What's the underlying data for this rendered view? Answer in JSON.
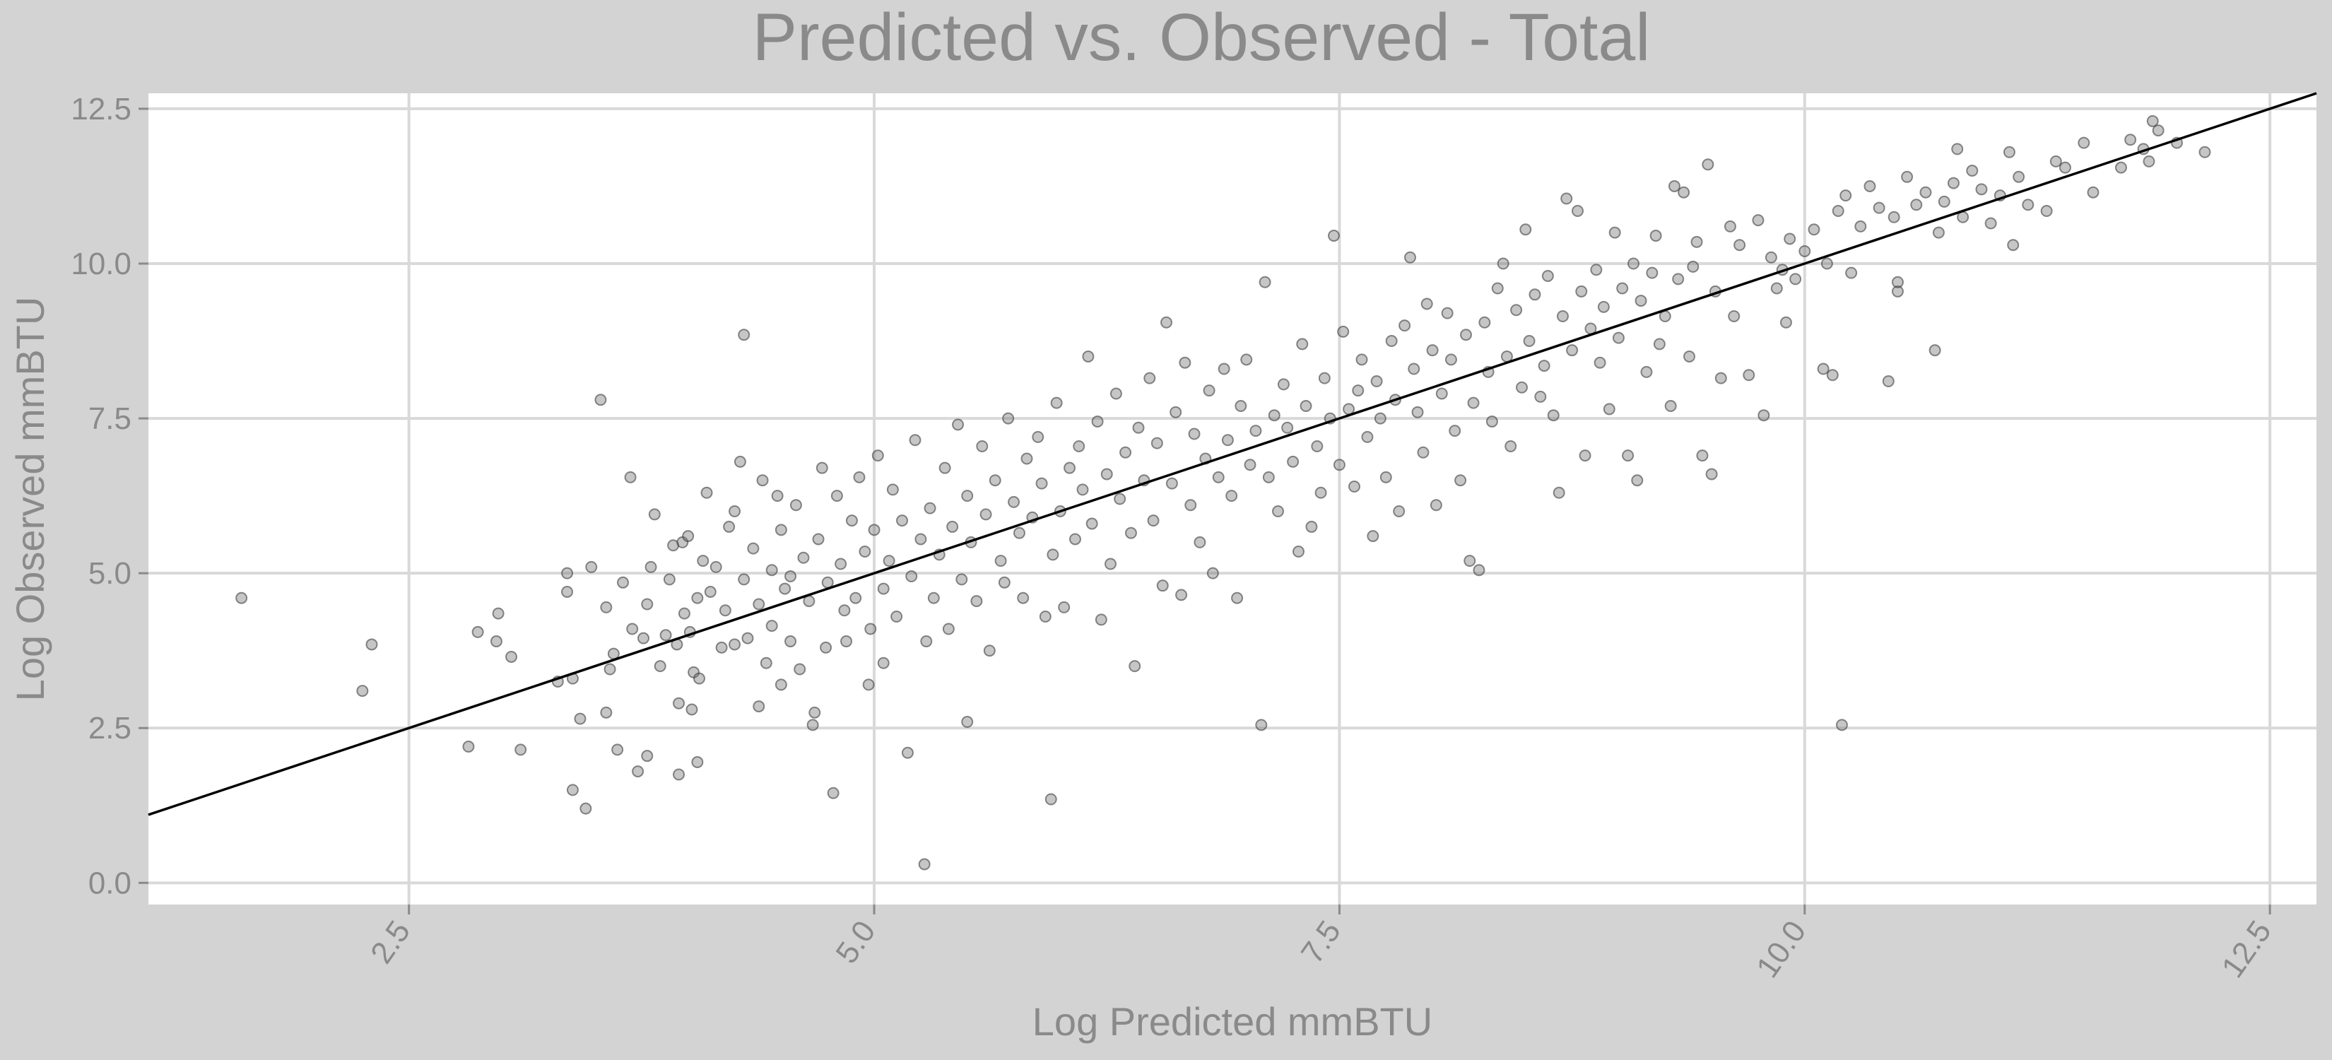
{
  "chart_data": {
    "type": "scatter",
    "title": "Predicted vs. Observed - Total",
    "xlabel": "Log Predicted mmBTU",
    "ylabel": "Log Observed mmBTU",
    "xlim": [
      1.1,
      12.75
    ],
    "ylim": [
      -0.35,
      12.75
    ],
    "xticks": [
      2.5,
      5.0,
      7.5,
      10.0,
      12.5
    ],
    "yticks": [
      0.0,
      2.5,
      5.0,
      7.5,
      10.0,
      12.5
    ],
    "xtick_labels": [
      "2.5",
      "5.0",
      "7.5",
      "10.0",
      "12.5"
    ],
    "ytick_labels": [
      "0.0",
      "2.5",
      "5.0",
      "7.5",
      "10.0",
      "12.5"
    ],
    "grid": true,
    "reference_line": {
      "type": "identity",
      "slope": 1,
      "intercept": 0
    },
    "points": [
      [
        1.6,
        4.6
      ],
      [
        2.25,
        3.1
      ],
      [
        2.3,
        3.85
      ],
      [
        2.82,
        2.2
      ],
      [
        2.87,
        4.05
      ],
      [
        2.98,
        4.35
      ],
      [
        2.97,
        3.9
      ],
      [
        3.05,
        3.65
      ],
      [
        3.1,
        2.15
      ],
      [
        3.3,
        3.25
      ],
      [
        3.35,
        4.7
      ],
      [
        3.35,
        5.0
      ],
      [
        3.38,
        3.3
      ],
      [
        3.38,
        1.5
      ],
      [
        3.42,
        2.65
      ],
      [
        3.45,
        1.2
      ],
      [
        3.48,
        5.1
      ],
      [
        3.53,
        7.8
      ],
      [
        3.56,
        4.45
      ],
      [
        3.56,
        2.75
      ],
      [
        3.58,
        3.45
      ],
      [
        3.6,
        3.7
      ],
      [
        3.62,
        2.15
      ],
      [
        3.65,
        4.85
      ],
      [
        3.69,
        6.55
      ],
      [
        3.7,
        4.1
      ],
      [
        3.73,
        1.8
      ],
      [
        3.76,
        3.95
      ],
      [
        3.78,
        2.05
      ],
      [
        3.78,
        4.5
      ],
      [
        3.8,
        5.1
      ],
      [
        3.82,
        5.95
      ],
      [
        3.85,
        3.5
      ],
      [
        3.88,
        4.0
      ],
      [
        3.9,
        4.9
      ],
      [
        3.92,
        5.45
      ],
      [
        3.94,
        3.85
      ],
      [
        3.95,
        2.9
      ],
      [
        3.95,
        1.75
      ],
      [
        3.97,
        5.5
      ],
      [
        3.98,
        4.35
      ],
      [
        4.0,
        5.6
      ],
      [
        4.01,
        4.05
      ],
      [
        4.02,
        2.8
      ],
      [
        4.03,
        3.4
      ],
      [
        4.05,
        1.95
      ],
      [
        4.05,
        4.6
      ],
      [
        4.06,
        3.3
      ],
      [
        4.08,
        5.2
      ],
      [
        4.1,
        6.3
      ],
      [
        4.12,
        4.7
      ],
      [
        4.15,
        5.1
      ],
      [
        4.18,
        3.8
      ],
      [
        4.2,
        4.4
      ],
      [
        4.22,
        5.75
      ],
      [
        4.25,
        3.85
      ],
      [
        4.25,
        6.0
      ],
      [
        4.28,
        6.8
      ],
      [
        4.3,
        4.9
      ],
      [
        4.3,
        8.85
      ],
      [
        4.32,
        3.95
      ],
      [
        4.35,
        5.4
      ],
      [
        4.38,
        2.85
      ],
      [
        4.38,
        4.5
      ],
      [
        4.4,
        6.5
      ],
      [
        4.42,
        3.55
      ],
      [
        4.45,
        5.05
      ],
      [
        4.45,
        4.15
      ],
      [
        4.48,
        6.25
      ],
      [
        4.5,
        3.2
      ],
      [
        4.5,
        5.7
      ],
      [
        4.52,
        4.75
      ],
      [
        4.55,
        3.9
      ],
      [
        4.55,
        4.95
      ],
      [
        4.58,
        6.1
      ],
      [
        4.6,
        3.45
      ],
      [
        4.62,
        5.25
      ],
      [
        4.65,
        4.55
      ],
      [
        4.67,
        2.55
      ],
      [
        4.68,
        2.75
      ],
      [
        4.7,
        5.55
      ],
      [
        4.72,
        6.7
      ],
      [
        4.74,
        3.8
      ],
      [
        4.75,
        4.85
      ],
      [
        4.78,
        1.45
      ],
      [
        4.8,
        6.25
      ],
      [
        4.82,
        5.15
      ],
      [
        4.84,
        4.4
      ],
      [
        4.85,
        3.9
      ],
      [
        4.88,
        5.85
      ],
      [
        4.9,
        4.6
      ],
      [
        4.92,
        6.55
      ],
      [
        4.95,
        5.35
      ],
      [
        4.97,
        3.2
      ],
      [
        4.98,
        4.1
      ],
      [
        5.0,
        5.7
      ],
      [
        5.02,
        6.9
      ],
      [
        5.05,
        4.75
      ],
      [
        5.05,
        3.55
      ],
      [
        5.08,
        5.2
      ],
      [
        5.1,
        6.35
      ],
      [
        5.12,
        4.3
      ],
      [
        5.15,
        5.85
      ],
      [
        5.18,
        2.1
      ],
      [
        5.2,
        4.95
      ],
      [
        5.22,
        7.15
      ],
      [
        5.25,
        5.55
      ],
      [
        5.27,
        0.3
      ],
      [
        5.28,
        3.9
      ],
      [
        5.3,
        6.05
      ],
      [
        5.32,
        4.6
      ],
      [
        5.35,
        5.3
      ],
      [
        5.38,
        6.7
      ],
      [
        5.4,
        4.1
      ],
      [
        5.42,
        5.75
      ],
      [
        5.45,
        7.4
      ],
      [
        5.47,
        4.9
      ],
      [
        5.5,
        2.6
      ],
      [
        5.5,
        6.25
      ],
      [
        5.52,
        5.5
      ],
      [
        5.55,
        4.55
      ],
      [
        5.58,
        7.05
      ],
      [
        5.6,
        5.95
      ],
      [
        5.62,
        3.75
      ],
      [
        5.65,
        6.5
      ],
      [
        5.68,
        5.2
      ],
      [
        5.7,
        4.85
      ],
      [
        5.72,
        7.5
      ],
      [
        5.75,
        6.15
      ],
      [
        5.78,
        5.65
      ],
      [
        5.8,
        4.6
      ],
      [
        5.82,
        6.85
      ],
      [
        5.85,
        5.9
      ],
      [
        5.88,
        7.2
      ],
      [
        5.9,
        6.45
      ],
      [
        5.92,
        4.3
      ],
      [
        5.95,
        1.35
      ],
      [
        5.96,
        5.3
      ],
      [
        5.98,
        7.75
      ],
      [
        6.0,
        6.0
      ],
      [
        6.02,
        4.45
      ],
      [
        6.05,
        6.7
      ],
      [
        6.08,
        5.55
      ],
      [
        6.1,
        7.05
      ],
      [
        6.12,
        6.35
      ],
      [
        6.15,
        8.5
      ],
      [
        6.17,
        5.8
      ],
      [
        6.2,
        7.45
      ],
      [
        6.22,
        4.25
      ],
      [
        6.25,
        6.6
      ],
      [
        6.27,
        5.15
      ],
      [
        6.3,
        7.9
      ],
      [
        6.32,
        6.2
      ],
      [
        6.35,
        6.95
      ],
      [
        6.38,
        5.65
      ],
      [
        6.4,
        3.5
      ],
      [
        6.42,
        7.35
      ],
      [
        6.45,
        6.5
      ],
      [
        6.48,
        8.15
      ],
      [
        6.5,
        5.85
      ],
      [
        6.52,
        7.1
      ],
      [
        6.55,
        4.8
      ],
      [
        6.57,
        9.05
      ],
      [
        6.6,
        6.45
      ],
      [
        6.62,
        7.6
      ],
      [
        6.65,
        4.65
      ],
      [
        6.67,
        8.4
      ],
      [
        6.7,
        6.1
      ],
      [
        6.72,
        7.25
      ],
      [
        6.75,
        5.5
      ],
      [
        6.78,
        6.85
      ],
      [
        6.8,
        7.95
      ],
      [
        6.82,
        5.0
      ],
      [
        6.85,
        6.55
      ],
      [
        6.88,
        8.3
      ],
      [
        6.9,
        7.15
      ],
      [
        6.92,
        6.25
      ],
      [
        6.95,
        4.6
      ],
      [
        6.97,
        7.7
      ],
      [
        7.0,
        8.45
      ],
      [
        7.02,
        6.75
      ],
      [
        7.05,
        7.3
      ],
      [
        7.08,
        2.55
      ],
      [
        7.1,
        9.7
      ],
      [
        7.12,
        6.55
      ],
      [
        7.15,
        7.55
      ],
      [
        7.17,
        6.0
      ],
      [
        7.2,
        8.05
      ],
      [
        7.22,
        7.35
      ],
      [
        7.25,
        6.8
      ],
      [
        7.28,
        5.35
      ],
      [
        7.3,
        8.7
      ],
      [
        7.32,
        7.7
      ],
      [
        7.35,
        5.75
      ],
      [
        7.38,
        7.05
      ],
      [
        7.4,
        6.3
      ],
      [
        7.42,
        8.15
      ],
      [
        7.45,
        7.5
      ],
      [
        7.47,
        10.45
      ],
      [
        7.5,
        6.75
      ],
      [
        7.52,
        8.9
      ],
      [
        7.55,
        7.65
      ],
      [
        7.58,
        6.4
      ],
      [
        7.6,
        7.95
      ],
      [
        7.62,
        8.45
      ],
      [
        7.65,
        7.2
      ],
      [
        7.68,
        5.6
      ],
      [
        7.7,
        8.1
      ],
      [
        7.72,
        7.5
      ],
      [
        7.75,
        6.55
      ],
      [
        7.78,
        8.75
      ],
      [
        7.8,
        7.8
      ],
      [
        7.82,
        6.0
      ],
      [
        7.85,
        9.0
      ],
      [
        7.88,
        10.1
      ],
      [
        7.9,
        8.3
      ],
      [
        7.92,
        7.6
      ],
      [
        7.95,
        6.95
      ],
      [
        7.97,
        9.35
      ],
      [
        8.0,
        8.6
      ],
      [
        8.02,
        6.1
      ],
      [
        8.05,
        7.9
      ],
      [
        8.08,
        9.2
      ],
      [
        8.1,
        8.45
      ],
      [
        8.12,
        7.3
      ],
      [
        8.15,
        6.5
      ],
      [
        8.18,
        8.85
      ],
      [
        8.2,
        5.2
      ],
      [
        8.22,
        7.75
      ],
      [
        8.25,
        5.05
      ],
      [
        8.28,
        9.05
      ],
      [
        8.3,
        8.25
      ],
      [
        8.32,
        7.45
      ],
      [
        8.35,
        9.6
      ],
      [
        8.38,
        10.0
      ],
      [
        8.4,
        8.5
      ],
      [
        8.42,
        7.05
      ],
      [
        8.45,
        9.25
      ],
      [
        8.48,
        8.0
      ],
      [
        8.5,
        10.55
      ],
      [
        8.52,
        8.75
      ],
      [
        8.55,
        9.5
      ],
      [
        8.58,
        7.85
      ],
      [
        8.6,
        8.35
      ],
      [
        8.62,
        9.8
      ],
      [
        8.65,
        7.55
      ],
      [
        8.68,
        6.3
      ],
      [
        8.7,
        9.15
      ],
      [
        8.72,
        11.05
      ],
      [
        8.75,
        8.6
      ],
      [
        8.78,
        10.85
      ],
      [
        8.8,
        9.55
      ],
      [
        8.82,
        6.9
      ],
      [
        8.85,
        8.95
      ],
      [
        8.88,
        9.9
      ],
      [
        8.9,
        8.4
      ],
      [
        8.92,
        9.3
      ],
      [
        8.95,
        7.65
      ],
      [
        8.98,
        10.5
      ],
      [
        9.0,
        8.8
      ],
      [
        9.02,
        9.6
      ],
      [
        9.05,
        6.9
      ],
      [
        9.08,
        10.0
      ],
      [
        9.1,
        6.5
      ],
      [
        9.12,
        9.4
      ],
      [
        9.15,
        8.25
      ],
      [
        9.18,
        9.85
      ],
      [
        9.2,
        10.45
      ],
      [
        9.22,
        8.7
      ],
      [
        9.25,
        9.15
      ],
      [
        9.28,
        7.7
      ],
      [
        9.3,
        11.25
      ],
      [
        9.32,
        9.75
      ],
      [
        9.35,
        11.15
      ],
      [
        9.38,
        8.5
      ],
      [
        9.4,
        9.95
      ],
      [
        9.42,
        10.35
      ],
      [
        9.45,
        6.9
      ],
      [
        9.48,
        11.6
      ],
      [
        9.5,
        6.6
      ],
      [
        9.52,
        9.55
      ],
      [
        9.55,
        8.15
      ],
      [
        9.6,
        10.6
      ],
      [
        9.62,
        9.15
      ],
      [
        9.65,
        10.3
      ],
      [
        9.7,
        8.2
      ],
      [
        9.75,
        10.7
      ],
      [
        9.78,
        7.55
      ],
      [
        9.82,
        10.1
      ],
      [
        9.85,
        9.6
      ],
      [
        9.88,
        9.9
      ],
      [
        9.9,
        9.05
      ],
      [
        9.92,
        10.4
      ],
      [
        9.95,
        9.75
      ],
      [
        10.0,
        10.2
      ],
      [
        10.05,
        10.55
      ],
      [
        10.1,
        8.3
      ],
      [
        10.12,
        10.0
      ],
      [
        10.15,
        8.2
      ],
      [
        10.18,
        10.85
      ],
      [
        10.2,
        2.55
      ],
      [
        10.22,
        11.1
      ],
      [
        10.25,
        9.85
      ],
      [
        10.3,
        10.6
      ],
      [
        10.35,
        11.25
      ],
      [
        10.4,
        10.9
      ],
      [
        10.45,
        8.1
      ],
      [
        10.48,
        10.75
      ],
      [
        10.5,
        9.55
      ],
      [
        10.5,
        9.7
      ],
      [
        10.55,
        11.4
      ],
      [
        10.6,
        10.95
      ],
      [
        10.65,
        11.15
      ],
      [
        10.7,
        8.6
      ],
      [
        10.72,
        10.5
      ],
      [
        10.75,
        11.0
      ],
      [
        10.8,
        11.3
      ],
      [
        10.82,
        11.85
      ],
      [
        10.85,
        10.75
      ],
      [
        10.9,
        11.5
      ],
      [
        10.95,
        11.2
      ],
      [
        11.0,
        10.65
      ],
      [
        11.05,
        11.1
      ],
      [
        11.1,
        11.8
      ],
      [
        11.12,
        10.3
      ],
      [
        11.15,
        11.4
      ],
      [
        11.2,
        10.95
      ],
      [
        11.3,
        10.85
      ],
      [
        11.35,
        11.65
      ],
      [
        11.4,
        11.55
      ],
      [
        11.5,
        11.95
      ],
      [
        11.55,
        11.15
      ],
      [
        11.7,
        11.55
      ],
      [
        11.75,
        12.0
      ],
      [
        11.82,
        11.85
      ],
      [
        11.85,
        11.65
      ],
      [
        11.87,
        12.3
      ],
      [
        11.9,
        12.15
      ],
      [
        12.0,
        11.95
      ],
      [
        12.15,
        11.8
      ]
    ]
  }
}
